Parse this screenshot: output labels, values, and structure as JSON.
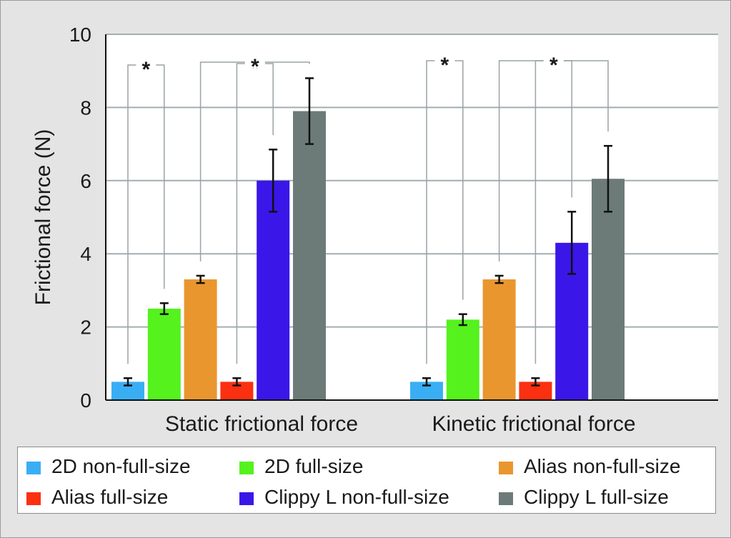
{
  "chart_data": {
    "type": "bar",
    "ylabel": "Frictional force (N)",
    "ylim": [
      0,
      10
    ],
    "yticks": [
      0,
      2,
      4,
      6,
      8,
      10
    ],
    "grid": true,
    "groups": [
      "Static frictional force",
      "Kinetic frictional force"
    ],
    "series": [
      {
        "name": "2D non-full-size",
        "color": "#3aaef5",
        "values": [
          0.5,
          0.5
        ],
        "errors": [
          0.1,
          0.1
        ]
      },
      {
        "name": "2D full-size",
        "color": "#55f21e",
        "values": [
          2.5,
          2.2
        ],
        "errors": [
          0.15,
          0.15
        ]
      },
      {
        "name": "Alias non-full-size",
        "color": "#ea962e",
        "values": [
          3.3,
          3.3
        ],
        "errors": [
          0.1,
          0.1
        ]
      },
      {
        "name": "Alias full-size",
        "color": "#fb3010",
        "values": [
          0.5,
          0.5
        ],
        "errors": [
          0.1,
          0.1
        ]
      },
      {
        "name": "Clippy L non-full-size",
        "color": "#3a17e8",
        "values": [
          6.0,
          4.3
        ],
        "errors": [
          0.85,
          0.85
        ]
      },
      {
        "name": "Clippy L full-size",
        "color": "#6c7b77",
        "values": [
          7.9,
          6.05
        ],
        "errors": [
          0.9,
          0.9
        ]
      }
    ],
    "pairs": [
      {
        "group": 0,
        "left": 0,
        "right": 1,
        "marker": "*"
      },
      {
        "group": 0,
        "left": 3,
        "right": 4,
        "marker": "*"
      },
      {
        "group": 0,
        "left": 2,
        "right": 5,
        "marker": "*"
      },
      {
        "group": 1,
        "left": 0,
        "right": 1,
        "marker": "*"
      },
      {
        "group": 1,
        "left": 3,
        "right": 4,
        "marker": "*"
      },
      {
        "group": 1,
        "left": 2,
        "right": 5,
        "marker": "*"
      }
    ]
  },
  "legend": {
    "items": [
      {
        "label": "2D non-full-size",
        "color": "#3aaef5"
      },
      {
        "label": "2D full-size",
        "color": "#55f21e"
      },
      {
        "label": "Alias non-full-size",
        "color": "#ea962e"
      },
      {
        "label": "Alias full-size",
        "color": "#fb3010"
      },
      {
        "label": "Clippy L non-full-size",
        "color": "#3a17e8"
      },
      {
        "label": "Clippy L full-size",
        "color": "#6c7b77"
      }
    ]
  }
}
